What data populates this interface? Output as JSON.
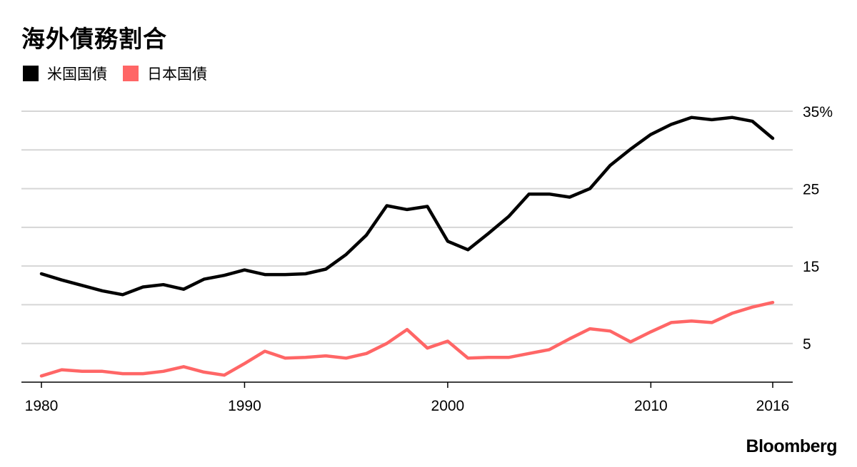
{
  "chart_data": {
    "type": "line",
    "title": "海外債務割合",
    "xlabel": "",
    "ylabel": "",
    "x": [
      1980,
      1981,
      1982,
      1983,
      1984,
      1985,
      1986,
      1987,
      1988,
      1989,
      1990,
      1991,
      1992,
      1993,
      1994,
      1995,
      1996,
      1997,
      1998,
      1999,
      2000,
      2001,
      2002,
      2003,
      2004,
      2005,
      2006,
      2007,
      2008,
      2009,
      2010,
      2011,
      2012,
      2013,
      2014,
      2015,
      2016
    ],
    "series": [
      {
        "name": "米国国債",
        "color": "#000000",
        "values": [
          14.0,
          13.2,
          12.5,
          11.8,
          11.3,
          12.3,
          12.6,
          12.0,
          13.3,
          13.8,
          14.5,
          13.9,
          13.9,
          14.0,
          14.6,
          16.5,
          19.0,
          22.8,
          22.3,
          22.7,
          18.2,
          17.1,
          19.2,
          21.4,
          24.3,
          24.3,
          23.9,
          25.0,
          28.0,
          30.1,
          32.0,
          33.3,
          34.2,
          33.9,
          34.2,
          33.7,
          31.5
        ]
      },
      {
        "name": "日本国債",
        "color": "#ff6666",
        "values": [
          0.8,
          1.6,
          1.4,
          1.4,
          1.1,
          1.1,
          1.4,
          2.0,
          1.3,
          0.9,
          2.4,
          4.0,
          3.1,
          3.2,
          3.4,
          3.1,
          3.7,
          5.0,
          6.8,
          4.4,
          5.3,
          3.1,
          3.2,
          3.2,
          3.7,
          4.2,
          5.6,
          6.9,
          6.6,
          5.2,
          6.5,
          7.7,
          7.9,
          7.7,
          8.9,
          9.7,
          10.3
        ]
      }
    ],
    "ylim": [
      0,
      35
    ],
    "gridlines": [
      0,
      5,
      10,
      15,
      20,
      25,
      30,
      35
    ],
    "y_tick_labels": [
      {
        "value": 35,
        "label": "35%"
      },
      {
        "value": 25,
        "label": "25"
      },
      {
        "value": 15,
        "label": "15"
      },
      {
        "value": 5,
        "label": "5"
      }
    ],
    "x_tick_labels": [
      {
        "value": 1980,
        "label": "1980"
      },
      {
        "value": 1990,
        "label": "1990"
      },
      {
        "value": 2000,
        "label": "2000"
      },
      {
        "value": 2010,
        "label": "2010"
      },
      {
        "value": 2016,
        "label": "2016"
      }
    ],
    "legend": "top-left"
  },
  "legend": {
    "items": [
      {
        "label": "米国国債",
        "color": "#000000"
      },
      {
        "label": "日本国債",
        "color": "#ff6666"
      }
    ]
  },
  "brand": {
    "name": "Bloomberg"
  }
}
